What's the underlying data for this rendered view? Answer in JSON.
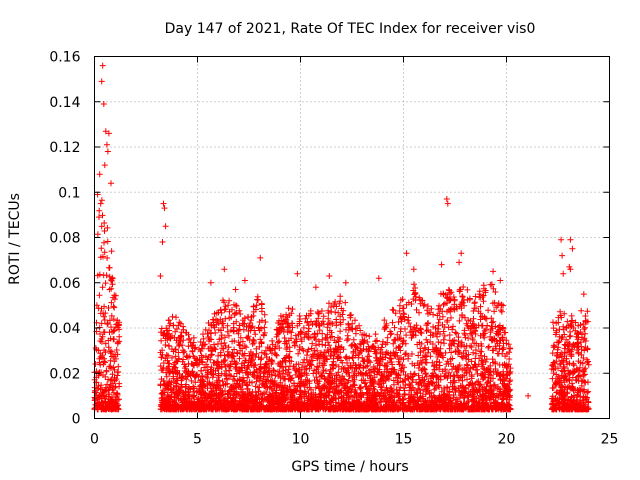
{
  "chart_data": {
    "type": "scatter",
    "title": "Day 147 of 2021, Rate Of TEC Index for receiver vis0",
    "xlabel": "GPS time / hours",
    "ylabel": "ROTI / TECUs",
    "xlim": [
      0,
      25
    ],
    "ylim": [
      0,
      0.16
    ],
    "grid": true,
    "marker": "plus",
    "color": "#ff0000",
    "x_ticks": [
      "0",
      "5",
      "10",
      "15",
      "20",
      "25"
    ],
    "y_ticks": [
      "0",
      "0.02",
      "0.04",
      "0.06",
      "0.08",
      "0.1",
      "0.12",
      "0.14",
      "0.16"
    ],
    "series": [
      {
        "outliers": [
          [
            0.4,
            0.156
          ],
          [
            0.35,
            0.149
          ],
          [
            0.45,
            0.139
          ],
          [
            0.55,
            0.127
          ],
          [
            0.7,
            0.126
          ],
          [
            0.6,
            0.121
          ],
          [
            0.65,
            0.118
          ],
          [
            0.5,
            0.112
          ],
          [
            0.25,
            0.108
          ],
          [
            0.8,
            0.104
          ],
          [
            0.15,
            0.099
          ],
          [
            0.3,
            0.095
          ],
          [
            3.35,
            0.095
          ],
          [
            3.4,
            0.093
          ],
          [
            3.45,
            0.085
          ],
          [
            3.3,
            0.078
          ],
          [
            3.2,
            0.063
          ],
          [
            17.1,
            0.097
          ],
          [
            17.15,
            0.095
          ],
          [
            22.65,
            0.079
          ],
          [
            23.1,
            0.079
          ],
          [
            23.2,
            0.075
          ],
          [
            23.1,
            0.066
          ],
          [
            22.7,
            0.072
          ],
          [
            8.05,
            0.071
          ],
          [
            9.85,
            0.064
          ],
          [
            13.8,
            0.062
          ],
          [
            16.85,
            0.068
          ],
          [
            17.8,
            0.073
          ],
          [
            17.7,
            0.069
          ],
          [
            15.15,
            0.073
          ],
          [
            15.5,
            0.066
          ],
          [
            19.35,
            0.065
          ],
          [
            6.3,
            0.066
          ],
          [
            22.75,
            0.064
          ],
          [
            23.05,
            0.067
          ],
          [
            12.2,
            0.06
          ],
          [
            7.3,
            0.061
          ],
          [
            6.85,
            0.057
          ],
          [
            5.65,
            0.06
          ],
          [
            10.75,
            0.058
          ],
          [
            11.4,
            0.063
          ],
          [
            19.7,
            0.061
          ],
          [
            23.75,
            0.055
          ],
          [
            21.05,
            0.01
          ]
        ],
        "envelope": [
          [
            0.0,
            0.05
          ],
          [
            0.1,
            0.07
          ],
          [
            0.2,
            0.09
          ],
          [
            0.3,
            0.1
          ],
          [
            0.5,
            0.09
          ],
          [
            0.7,
            0.085
          ],
          [
            0.9,
            0.078
          ],
          [
            1.1,
            0.045
          ],
          [
            3.2,
            0.04
          ],
          [
            3.5,
            0.045
          ],
          [
            4.0,
            0.045
          ],
          [
            4.5,
            0.04
          ],
          [
            5.0,
            0.035
          ],
          [
            5.5,
            0.042
          ],
          [
            6.0,
            0.05
          ],
          [
            6.5,
            0.055
          ],
          [
            7.0,
            0.05
          ],
          [
            7.5,
            0.045
          ],
          [
            8.0,
            0.058
          ],
          [
            8.5,
            0.035
          ],
          [
            9.0,
            0.045
          ],
          [
            9.5,
            0.05
          ],
          [
            10.0,
            0.045
          ],
          [
            10.5,
            0.05
          ],
          [
            11.0,
            0.048
          ],
          [
            11.5,
            0.052
          ],
          [
            12.0,
            0.055
          ],
          [
            12.5,
            0.045
          ],
          [
            13.0,
            0.04
          ],
          [
            13.5,
            0.035
          ],
          [
            14.0,
            0.045
          ],
          [
            14.5,
            0.05
          ],
          [
            15.0,
            0.055
          ],
          [
            15.5,
            0.06
          ],
          [
            16.0,
            0.055
          ],
          [
            16.5,
            0.05
          ],
          [
            17.0,
            0.06
          ],
          [
            17.5,
            0.055
          ],
          [
            18.0,
            0.06
          ],
          [
            18.5,
            0.055
          ],
          [
            19.0,
            0.06
          ],
          [
            19.5,
            0.06
          ],
          [
            20.0,
            0.045
          ],
          [
            20.2,
            0.03
          ],
          [
            22.2,
            0.045
          ],
          [
            22.6,
            0.05
          ],
          [
            23.0,
            0.045
          ],
          [
            23.5,
            0.048
          ],
          [
            24.0,
            0.05
          ]
        ],
        "coverage": [
          [
            0.0,
            1.2
          ],
          [
            3.2,
            20.2
          ],
          [
            22.2,
            24.0
          ]
        ],
        "baseline": 0.004
      }
    ]
  }
}
